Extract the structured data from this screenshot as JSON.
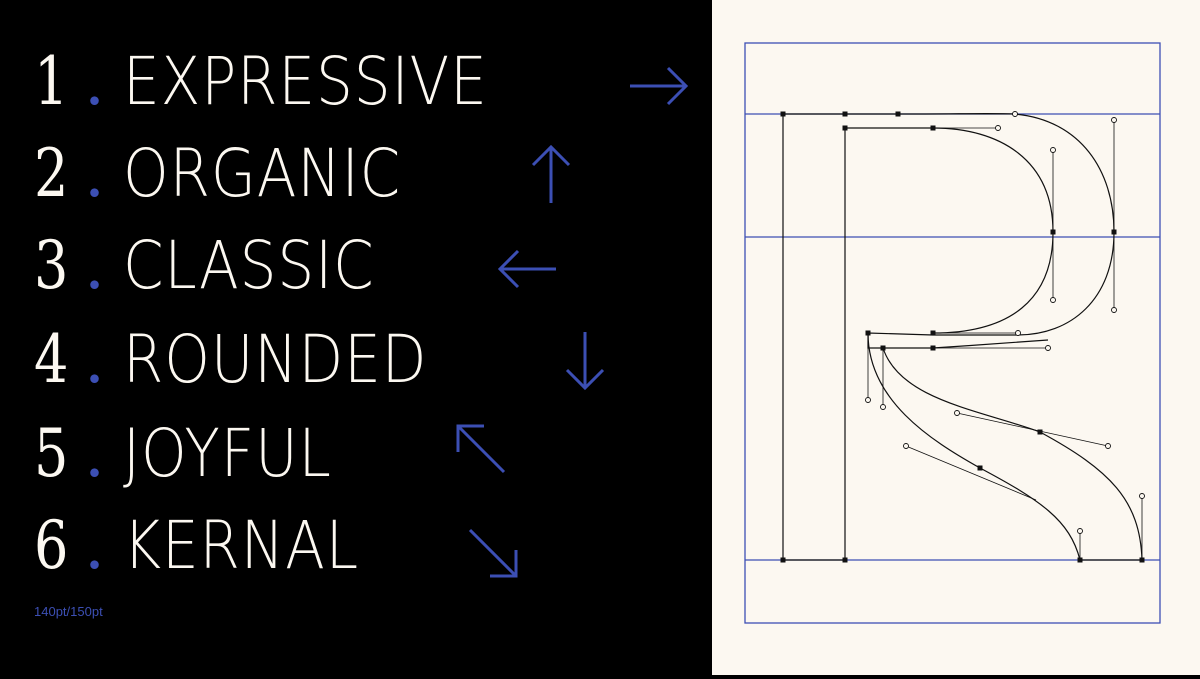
{
  "accent_color": "#3c4fb4",
  "text_color": "#fcf8f1",
  "background_left": "#000000",
  "background_right": "#fcf8f1",
  "list": [
    {
      "number": "1",
      "dot": ".",
      "label": "EXPRESSIVE",
      "arrow": "right-arrow-icon"
    },
    {
      "number": "2",
      "dot": ".",
      "label": "ORGANIC",
      "arrow": "up-arrow-icon"
    },
    {
      "number": "3",
      "dot": ".",
      "label": "CLASSIC",
      "arrow": "left-arrow-icon"
    },
    {
      "number": "4",
      "dot": ".",
      "label": "ROUNDED",
      "arrow": "down-arrow-icon"
    },
    {
      "number": "5",
      "dot": ".",
      "label": "JOYFUL",
      "arrow": "up-left-arrow-icon"
    },
    {
      "number": "6",
      "dot": ".",
      "label": "KERNAL",
      "arrow": "down-right-arrow-icon"
    }
  ],
  "size_note": "140pt/150pt",
  "glyph": {
    "letter": "R",
    "view": "bezier-outline"
  }
}
